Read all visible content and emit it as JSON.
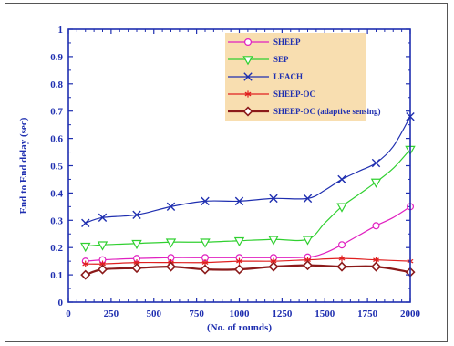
{
  "chart_data": {
    "type": "line",
    "title": "",
    "xlabel": "(No. of rounds)",
    "ylabel": "End to End delay (sec)",
    "xlim": [
      0,
      2000
    ],
    "ylim": [
      0,
      1
    ],
    "x_ticks": [
      "0",
      "250",
      "500",
      "750",
      "1000",
      "1250",
      "1500",
      "1750",
      "2000"
    ],
    "y_ticks": [
      "0",
      "0.1",
      "0.2",
      "0.3",
      "0.4",
      "0.5",
      "0.6",
      "0.7",
      "0.8",
      "0.9",
      "1"
    ],
    "grid": false,
    "legend_position": "top-right",
    "legend_background": "#f8deb0",
    "axis_color": "#1f2fb0",
    "series": [
      {
        "name": "SHEEP",
        "color": "#e020c0",
        "marker": "circle",
        "marker_x": [
          100,
          200,
          400,
          600,
          800,
          1000,
          1200,
          1400,
          1600,
          1800,
          2000
        ],
        "marker_y": [
          0.15,
          0.155,
          0.16,
          0.163,
          0.163,
          0.163,
          0.163,
          0.165,
          0.21,
          0.28,
          0.35
        ],
        "curve_x": [
          100,
          200,
          400,
          600,
          800,
          1000,
          1200,
          1400,
          1500,
          1600,
          1700,
          1800,
          1900,
          2000
        ],
        "curve_y": [
          0.15,
          0.155,
          0.16,
          0.163,
          0.163,
          0.163,
          0.163,
          0.165,
          0.18,
          0.21,
          0.245,
          0.28,
          0.31,
          0.35
        ]
      },
      {
        "name": "SEP",
        "color": "#30d030",
        "marker": "triangle-down",
        "marker_x": [
          100,
          200,
          400,
          600,
          800,
          1000,
          1200,
          1400,
          1600,
          1800,
          2000
        ],
        "marker_y": [
          0.205,
          0.21,
          0.215,
          0.22,
          0.22,
          0.225,
          0.23,
          0.23,
          0.35,
          0.44,
          0.56
        ],
        "curve_x": [
          100,
          200,
          400,
          600,
          800,
          1000,
          1200,
          1400,
          1500,
          1600,
          1700,
          1800,
          1900,
          2000
        ],
        "curve_y": [
          0.205,
          0.21,
          0.215,
          0.22,
          0.22,
          0.225,
          0.23,
          0.23,
          0.29,
          0.35,
          0.395,
          0.44,
          0.49,
          0.56
        ]
      },
      {
        "name": "LEACH",
        "color": "#1f2fb0",
        "marker": "x",
        "marker_x": [
          100,
          200,
          400,
          600,
          800,
          1000,
          1200,
          1400,
          1600,
          1800,
          2000
        ],
        "marker_y": [
          0.29,
          0.31,
          0.32,
          0.35,
          0.37,
          0.37,
          0.38,
          0.38,
          0.45,
          0.51,
          0.68
        ],
        "curve_x": [
          100,
          200,
          400,
          600,
          800,
          1000,
          1200,
          1400,
          1500,
          1600,
          1700,
          1800,
          1900,
          2000
        ],
        "curve_y": [
          0.29,
          0.31,
          0.32,
          0.35,
          0.37,
          0.37,
          0.38,
          0.38,
          0.41,
          0.45,
          0.48,
          0.51,
          0.57,
          0.68
        ]
      },
      {
        "name": "SHEEP-OC",
        "color": "#e02020",
        "marker": "asterisk",
        "marker_x": [
          100,
          200,
          400,
          600,
          800,
          1000,
          1200,
          1400,
          1600,
          1800,
          2000
        ],
        "marker_y": [
          0.14,
          0.14,
          0.145,
          0.145,
          0.145,
          0.15,
          0.15,
          0.155,
          0.16,
          0.155,
          0.15
        ],
        "curve_x": [
          100,
          200,
          400,
          600,
          800,
          1000,
          1200,
          1400,
          1600,
          1800,
          2000
        ],
        "curve_y": [
          0.14,
          0.14,
          0.145,
          0.145,
          0.145,
          0.15,
          0.15,
          0.155,
          0.16,
          0.155,
          0.15
        ]
      },
      {
        "name": "SHEEP-OC (adaptive sensing)",
        "color": "#8b1a1a",
        "marker": "diamond",
        "marker_x": [
          100,
          200,
          400,
          600,
          800,
          1000,
          1200,
          1400,
          1600,
          1800,
          2000
        ],
        "marker_y": [
          0.1,
          0.12,
          0.125,
          0.13,
          0.12,
          0.12,
          0.13,
          0.135,
          0.13,
          0.13,
          0.11
        ],
        "curve_x": [
          100,
          200,
          400,
          600,
          800,
          1000,
          1200,
          1400,
          1600,
          1800,
          2000
        ],
        "curve_y": [
          0.1,
          0.12,
          0.125,
          0.13,
          0.12,
          0.12,
          0.13,
          0.135,
          0.13,
          0.13,
          0.11
        ]
      }
    ]
  }
}
